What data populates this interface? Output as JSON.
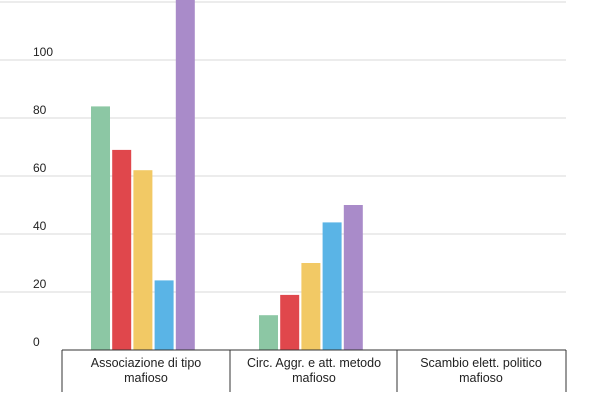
{
  "chart_data": {
    "type": "bar",
    "categories": [
      [
        "Associazione di tipo",
        "mafioso"
      ],
      [
        "Circ. Aggr. e att. metodo",
        "mafioso"
      ],
      [
        "Scambio elett. politico",
        "mafioso"
      ]
    ],
    "series": [
      {
        "color": "#8cc7a4",
        "values": [
          84,
          12,
          0
        ]
      },
      {
        "color": "#e0474c",
        "values": [
          69,
          19,
          0
        ]
      },
      {
        "color": "#f2c965",
        "values": [
          62,
          30,
          0
        ]
      },
      {
        "color": "#5ab4e6",
        "values": [
          24,
          44,
          0
        ]
      },
      {
        "color": "#a98bc9",
        "values": [
          125,
          50,
          0
        ]
      }
    ],
    "y_ticks": [
      0,
      20,
      40,
      60,
      80,
      100
    ],
    "ylim": [
      0,
      120
    ],
    "grid": true,
    "legend": "none"
  }
}
